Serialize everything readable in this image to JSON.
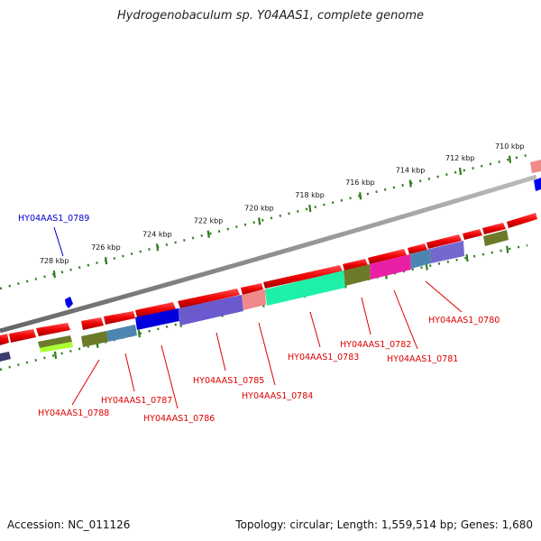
{
  "title": "Hydrogenobaculum sp. Y04AAS1, complete genome",
  "footer": {
    "accession": "Accession: NC_011126",
    "topology": "Topology: circular; Length: 1,559,514 bp; Genes: 1,680"
  },
  "ruler": {
    "ticks": [
      "710 kbp",
      "712 kbp",
      "714 kbp",
      "716 kbp",
      "718 kbp",
      "720 kbp",
      "722 kbp",
      "724 kbp",
      "726 kbp",
      "728 kbp"
    ]
  },
  "colors": {
    "backbone": "#8a8a8a",
    "ruler": "#2e7d1e",
    "label_red": "#dd0000",
    "label_blue": "#0000cc"
  },
  "gene_labels": [
    {
      "text": "HY04AAS1_0789",
      "color": "#0000cc"
    },
    {
      "text": "HY04AAS1_0780",
      "color": "#dd0000"
    },
    {
      "text": "HY04AAS1_0782",
      "color": "#dd0000"
    },
    {
      "text": "HY04AAS1_0781",
      "color": "#dd0000"
    },
    {
      "text": "HY04AAS1_0783",
      "color": "#dd0000"
    },
    {
      "text": "HY04AAS1_0785",
      "color": "#dd0000"
    },
    {
      "text": "HY04AAS1_0784",
      "color": "#dd0000"
    },
    {
      "text": "HY04AAS1_0787",
      "color": "#dd0000"
    },
    {
      "text": "HY04AAS1_0786",
      "color": "#dd0000"
    },
    {
      "text": "HY04AAS1_0788",
      "color": "#dd0000"
    }
  ]
}
